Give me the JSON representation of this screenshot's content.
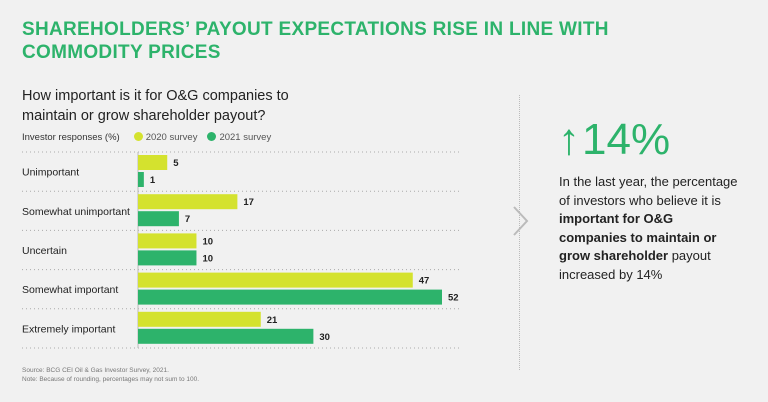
{
  "title": "SHAREHOLDERS’ PAYOUT EXPECTATIONS RISE IN LINE WITH COMMODITY PRICES",
  "question": "How important is it for O&G companies to maintain or grow shareholder payout?",
  "callout": {
    "arrow": "↑",
    "value": "14%",
    "text_pre": "In the last year, the percentage of investors who believe it is ",
    "text_bold": "important for O&G companies to maintain or grow shareholder",
    "text_post": " payout increased by 14%"
  },
  "source": "Source: BCG CEI Oil & Gas Investor Survey, 2021.",
  "note": "Note: Because of rounding, percentages may not sum to 100.",
  "chart_data": {
    "type": "bar",
    "orientation": "horizontal",
    "ylabel": "Investor responses (%)",
    "categories": [
      "Unimportant",
      "Somewhat unimportant",
      "Uncertain",
      "Somewhat important",
      "Extremely important"
    ],
    "series": [
      {
        "name": "2020 survey",
        "color": "#d4e22e",
        "values": [
          5,
          17,
          10,
          47,
          21
        ]
      },
      {
        "name": "2021 survey",
        "color": "#2db36b",
        "values": [
          1,
          7,
          10,
          52,
          30
        ]
      }
    ],
    "xlim": [
      0,
      52
    ]
  }
}
